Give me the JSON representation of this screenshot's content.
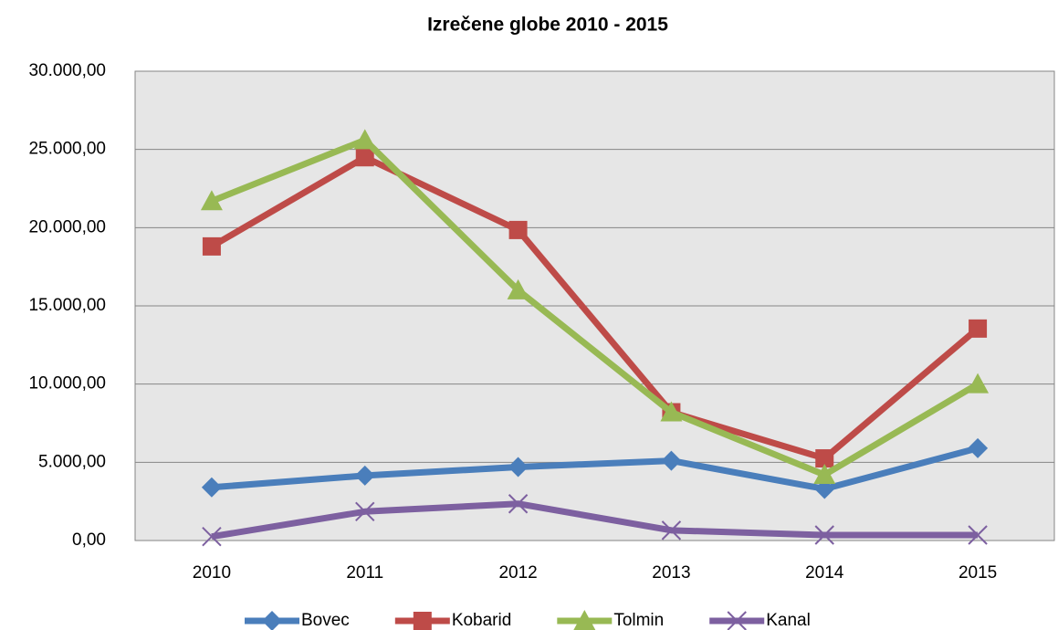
{
  "chart_data": {
    "type": "line",
    "title": "Izrečene globe 2010 - 2015",
    "categories": [
      "2010",
      "2011",
      "2012",
      "2013",
      "2014",
      "2015"
    ],
    "series": [
      {
        "name": "Bovec",
        "color": "#4a7ebb",
        "marker": "diamond",
        "values": [
          3400,
          4150,
          4700,
          5100,
          3300,
          5900
        ]
      },
      {
        "name": "Kobarid",
        "color": "#be4b48",
        "marker": "square",
        "values": [
          18800,
          24500,
          19850,
          8200,
          5250,
          13550
        ]
      },
      {
        "name": "Tolmin",
        "color": "#98b954",
        "marker": "triangle",
        "values": [
          21700,
          25600,
          16000,
          8200,
          4200,
          10000
        ]
      },
      {
        "name": "Kanal",
        "color": "#7d60a0",
        "marker": "x",
        "values": [
          250,
          1850,
          2350,
          650,
          350,
          350
        ]
      }
    ],
    "ylim": [
      0,
      30000
    ],
    "yticks": [
      {
        "value": 0,
        "label": "0,00"
      },
      {
        "value": 5000,
        "label": "5.000,00"
      },
      {
        "value": 10000,
        "label": "10.000,00"
      },
      {
        "value": 15000,
        "label": "15.000,00"
      },
      {
        "value": 20000,
        "label": "20.000,00"
      },
      {
        "value": 25000,
        "label": "25.000,00"
      },
      {
        "value": 30000,
        "label": "30.000,00"
      }
    ],
    "grid": true,
    "legend": "bottom"
  }
}
